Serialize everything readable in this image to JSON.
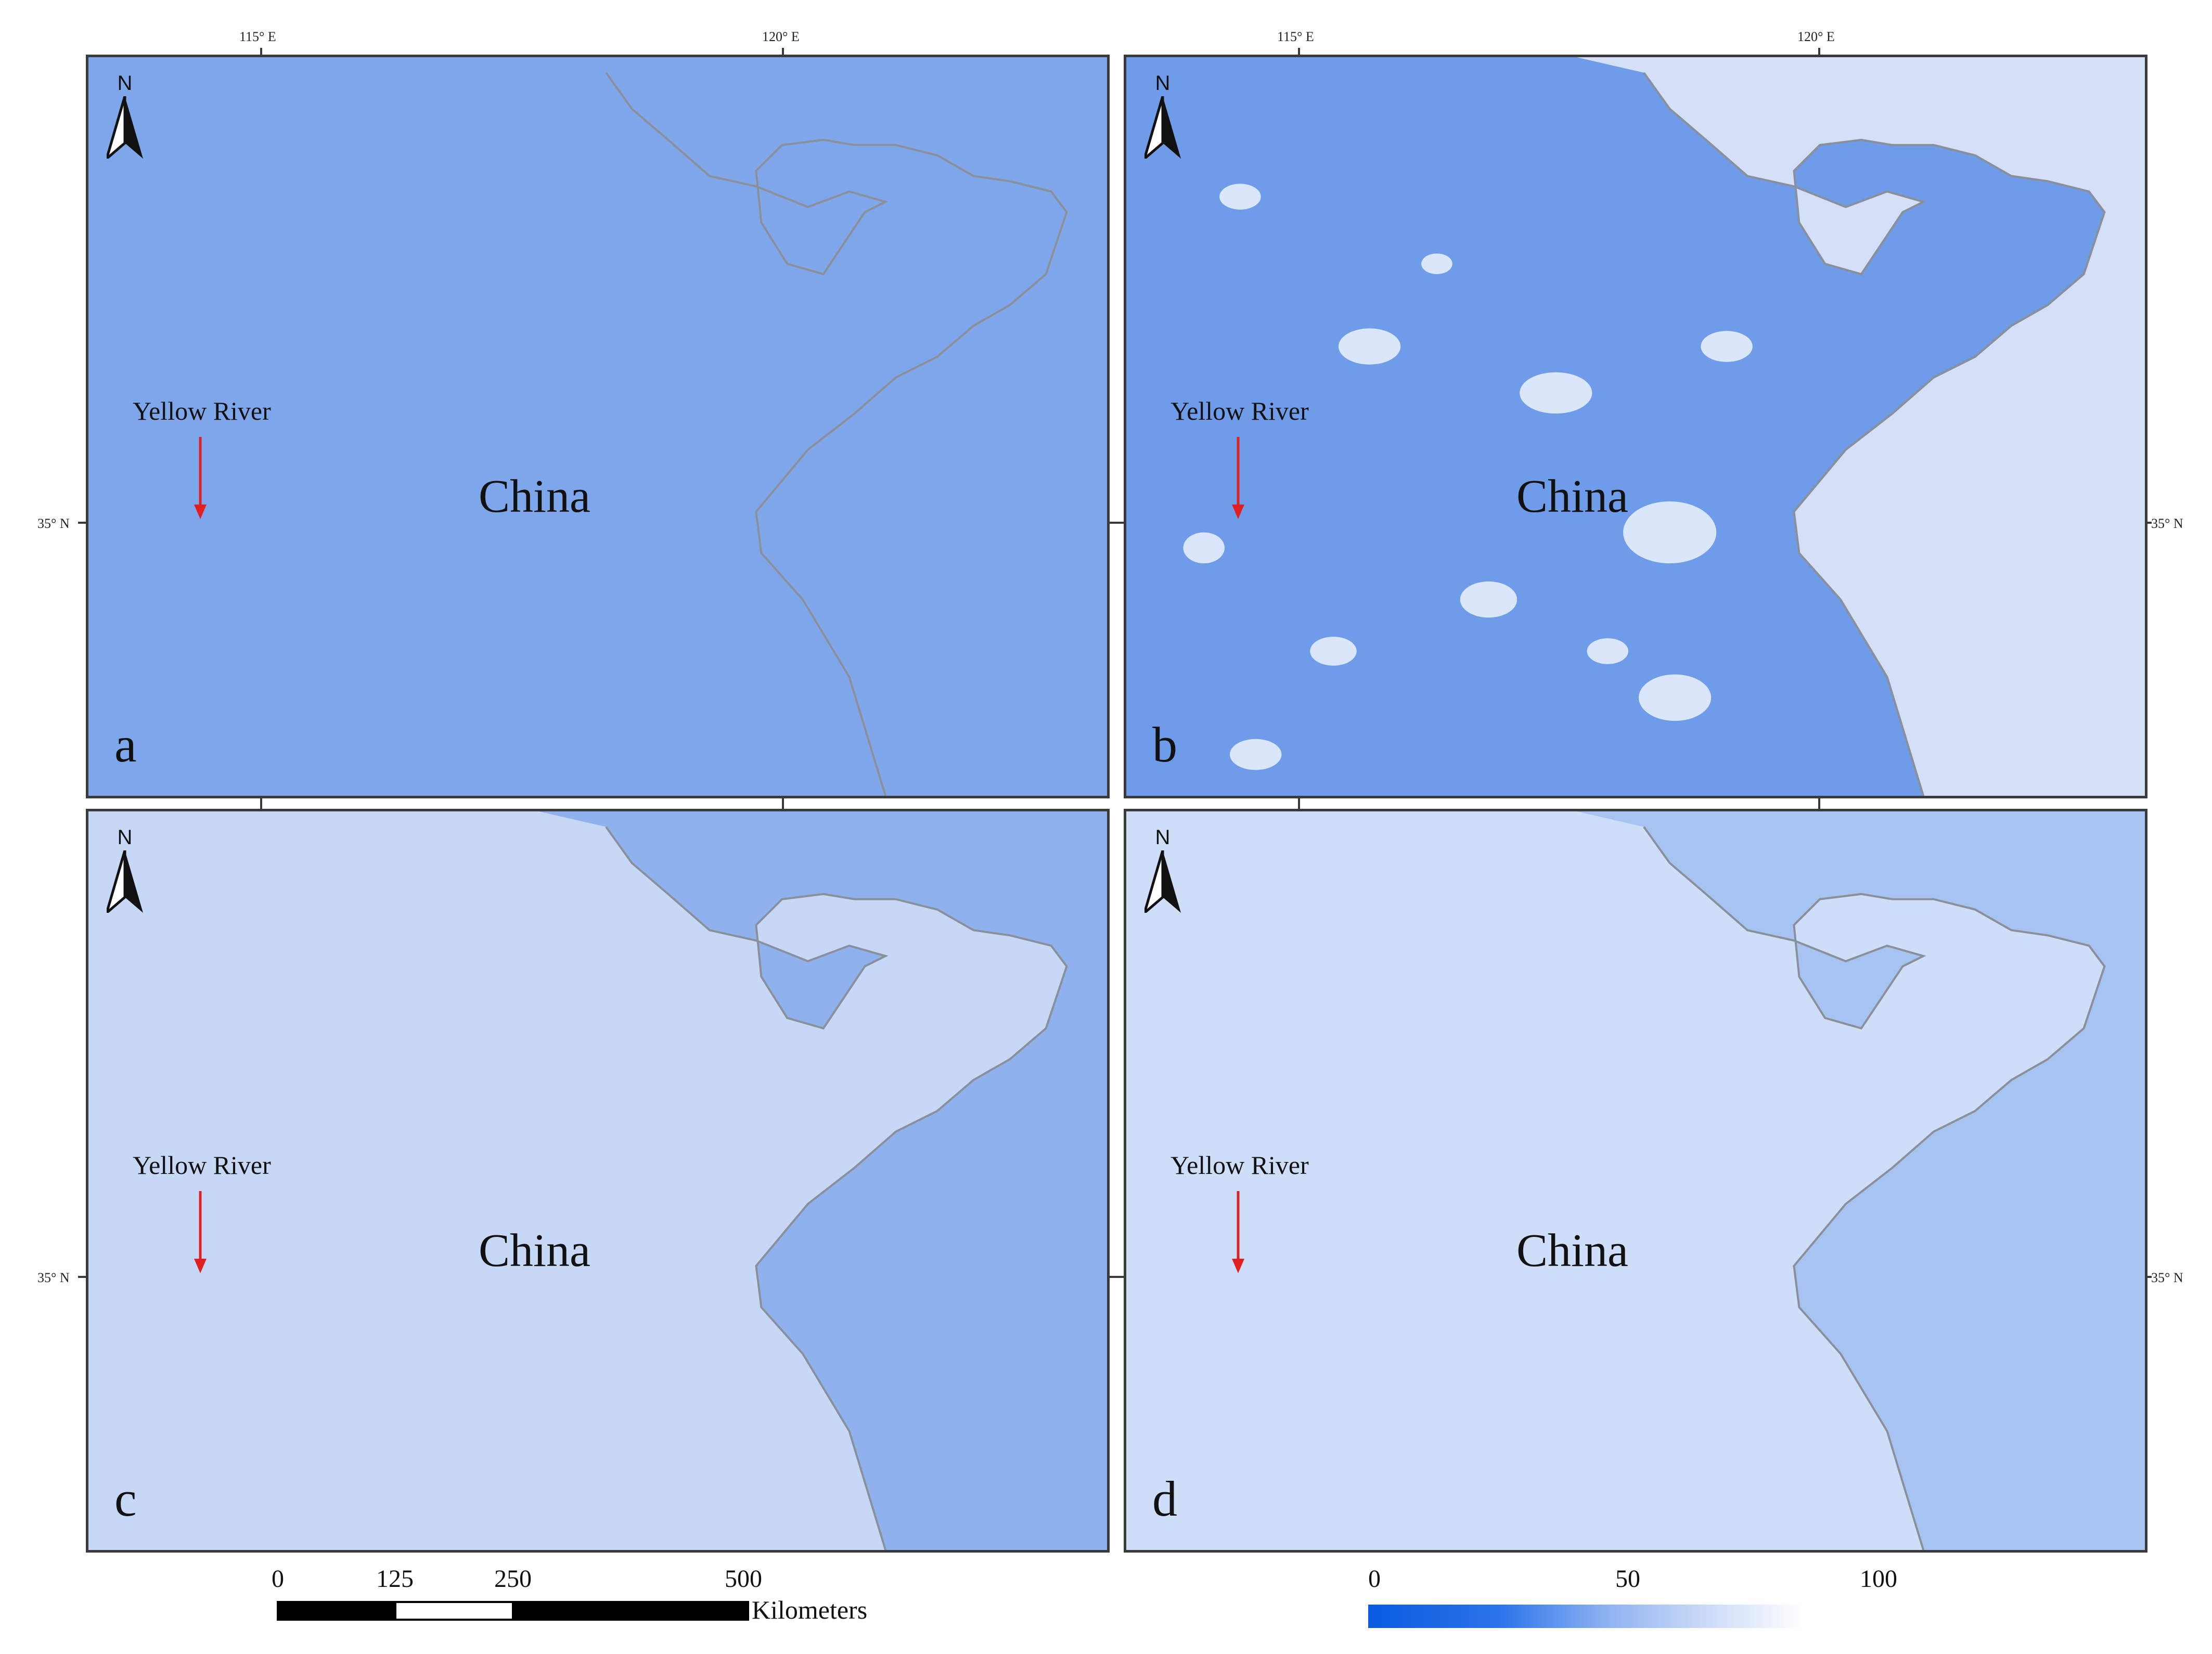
{
  "figure": {
    "country_label": "China",
    "river_label": "Yellow River",
    "north_label": "N",
    "lon_labels": [
      "115° E",
      "120° E"
    ],
    "lat_label": "35° N",
    "panels": [
      {
        "letter": "a",
        "land_color": "#7ea6ea",
        "sea_color": "#7fa7ea"
      },
      {
        "letter": "b",
        "land_color": "#6e9ce8",
        "sea_color": "#d3e0f8"
      },
      {
        "letter": "c",
        "land_color": "#c7d8f6",
        "sea_color": "#8fb2ef"
      },
      {
        "letter": "d",
        "land_color": "#cfdef8",
        "sea_color": "#a7c3f2"
      }
    ]
  },
  "scale_bar": {
    "ticks": [
      "0",
      "125",
      "250",
      "500"
    ],
    "unit": "Kilometers"
  },
  "legend": {
    "ticks": [
      "0",
      "50",
      "100"
    ],
    "color_start": "#0a5be0",
    "color_end": "#ffffff"
  }
}
